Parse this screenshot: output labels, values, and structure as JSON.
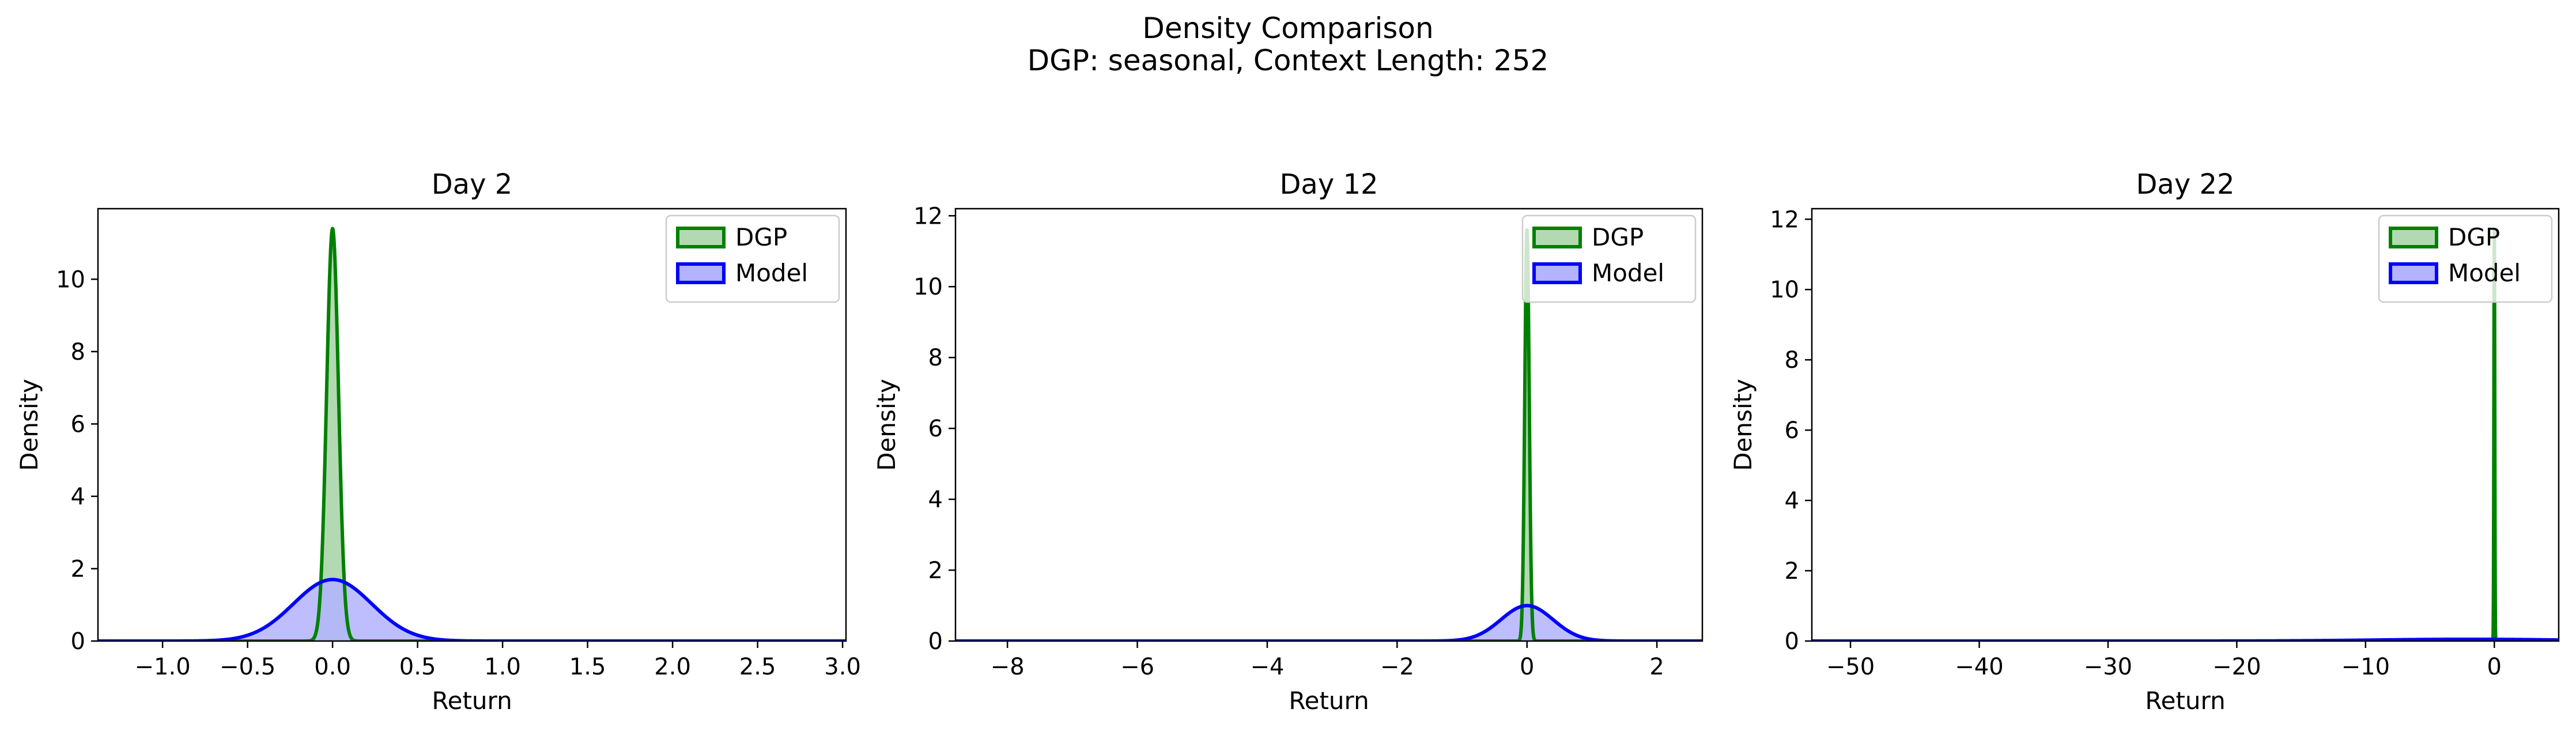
{
  "figure": {
    "title": "Density Comparison",
    "subtitle": "DGP: seasonal, Context Length: 252"
  },
  "colors": {
    "dgp_line": "#008000",
    "dgp_fill": "#b3d9b3",
    "model_line": "#0000ff",
    "model_fill": "#b3b3ff",
    "overlap_fill": "#5a7f9c"
  },
  "chart_data": [
    {
      "type": "area",
      "title": "Day 2",
      "xlabel": "Return",
      "ylabel": "Density",
      "xlim": [
        -1.38,
        3.02
      ],
      "ylim": [
        0,
        11.95
      ],
      "xticks": [
        -1.0,
        -0.5,
        0.0,
        0.5,
        1.0,
        1.5,
        2.0,
        2.5,
        3.0
      ],
      "xtick_labels": [
        "−1.0",
        "−0.5",
        "0.0",
        "0.5",
        "1.0",
        "1.5",
        "2.0",
        "2.5",
        "3.0"
      ],
      "yticks": [
        0,
        2,
        4,
        6,
        8,
        10
      ],
      "ytick_labels": [
        "0",
        "2",
        "4",
        "6",
        "8",
        "10"
      ],
      "legend": "top-right",
      "grid": false,
      "series": [
        {
          "name": "DGP",
          "peak_x": 0.0,
          "peak_density": 11.4,
          "sd": 0.035
        },
        {
          "name": "Model",
          "peak_x": 0.0,
          "peak_density": 1.7,
          "sd": 0.23
        }
      ]
    },
    {
      "type": "area",
      "title": "Day 12",
      "xlabel": "Return",
      "ylabel": "Density",
      "xlim": [
        -8.8,
        2.7
      ],
      "ylim": [
        0,
        12.2
      ],
      "xticks": [
        -8,
        -6,
        -4,
        -2,
        0,
        2
      ],
      "xtick_labels": [
        "−8",
        "−6",
        "−4",
        "−2",
        "0",
        "2"
      ],
      "yticks": [
        0,
        2,
        4,
        6,
        8,
        10,
        12
      ],
      "ytick_labels": [
        "0",
        "2",
        "4",
        "6",
        "8",
        "10",
        "12"
      ],
      "legend": "top-right",
      "grid": false,
      "series": [
        {
          "name": "DGP",
          "peak_x": 0.0,
          "peak_density": 11.6,
          "sd": 0.034
        },
        {
          "name": "Model",
          "peak_x": 0.0,
          "peak_density": 1.0,
          "sd": 0.4
        }
      ]
    },
    {
      "type": "area",
      "title": "Day 22",
      "xlabel": "Return",
      "ylabel": "Density",
      "xlim": [
        -53,
        5
      ],
      "ylim": [
        0,
        12.3
      ],
      "xticks": [
        -50,
        -40,
        -30,
        -20,
        -10,
        0
      ],
      "xtick_labels": [
        "−50",
        "−40",
        "−30",
        "−20",
        "−10",
        "0"
      ],
      "yticks": [
        0,
        2,
        4,
        6,
        8,
        10,
        12
      ],
      "ytick_labels": [
        "0",
        "2",
        "4",
        "6",
        "8",
        "10",
        "12"
      ],
      "legend": "top-right",
      "grid": false,
      "series": [
        {
          "name": "DGP",
          "peak_x": 0.0,
          "peak_density": 11.7,
          "sd": 0.034
        },
        {
          "name": "Model",
          "peak_x": -2.0,
          "peak_density": 0.05,
          "sd": 7.0
        }
      ]
    }
  ]
}
